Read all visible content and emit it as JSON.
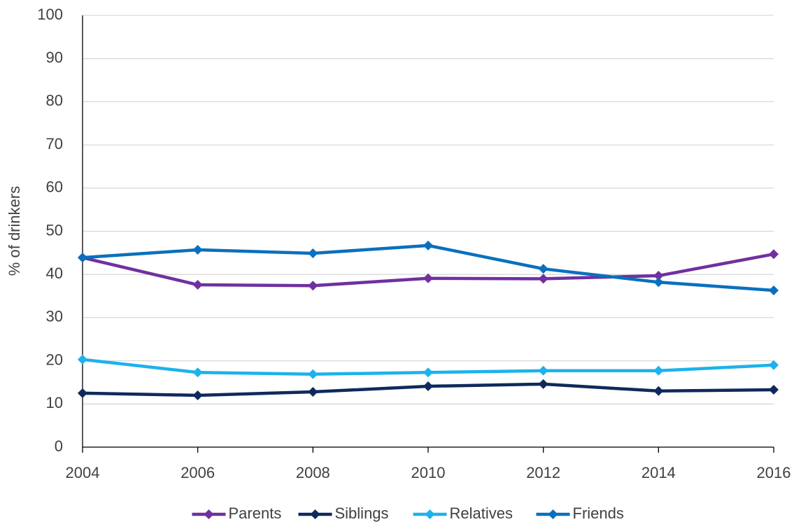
{
  "chart_data": {
    "type": "line",
    "y_label": "% of drinkers",
    "x": [
      2004,
      2006,
      2008,
      2010,
      2012,
      2014,
      2016
    ],
    "xlim": [
      2004,
      2016
    ],
    "xticks": [
      2004,
      2006,
      2008,
      2010,
      2012,
      2014,
      2016
    ],
    "ylim": [
      0,
      100
    ],
    "yticks": [
      0,
      10,
      20,
      30,
      40,
      50,
      60,
      70,
      80,
      90,
      100
    ],
    "grid": true,
    "legend": "bottom",
    "series": [
      {
        "name": "Parents",
        "color": "#7030a0",
        "values": [
          43.9,
          37.6,
          37.4,
          39.1,
          39.0,
          39.7,
          44.7
        ]
      },
      {
        "name": "Siblings",
        "color": "#0e2a5c",
        "values": [
          12.5,
          12.0,
          12.8,
          14.1,
          14.6,
          13.0,
          13.3
        ]
      },
      {
        "name": "Relatives",
        "color": "#1cb2ec",
        "values": [
          20.3,
          17.3,
          16.9,
          17.3,
          17.7,
          17.7,
          19.0
        ]
      },
      {
        "name": "Friends",
        "color": "#0a70bd",
        "values": [
          43.9,
          45.7,
          44.9,
          46.7,
          41.3,
          38.2,
          36.3
        ]
      }
    ]
  }
}
